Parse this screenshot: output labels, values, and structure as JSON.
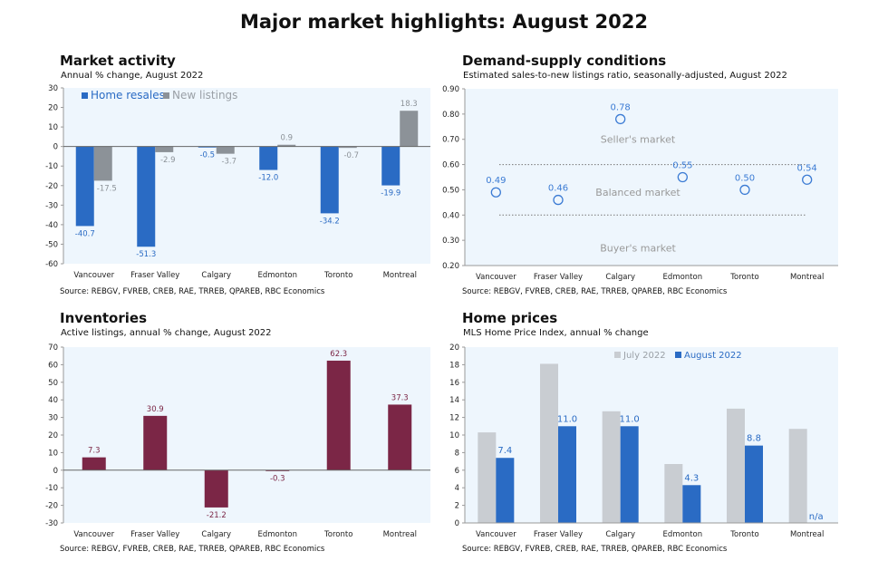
{
  "title": "Major market highlights: August 2022",
  "chart_data": [
    {
      "type": "bar",
      "title": "Market activity",
      "subtitle": "Annual % change, August 2022",
      "source": "Source: REBGV, FVREB, CREB, RAE, TRREB, QPAREB, RBC Economics",
      "categories": [
        "Vancouver",
        "Fraser Valley",
        "Calgary",
        "Edmonton",
        "Toronto",
        "Montreal"
      ],
      "series": [
        {
          "name": "Home resales",
          "color": "#2a6bc4",
          "values": [
            -40.7,
            -51.3,
            -0.5,
            -12.0,
            -34.2,
            -19.9
          ],
          "labels": [
            "-40.7",
            "-51.3",
            "-0.5",
            "-12.0",
            "-34.2",
            "-19.9"
          ]
        },
        {
          "name": "New listings",
          "color": "#8c9298",
          "values": [
            -17.5,
            -2.9,
            -3.7,
            0.9,
            -0.7,
            18.3
          ],
          "labels": [
            "-17.5",
            "-2.9",
            "-3.7",
            "0.9",
            "-0.7",
            "18.3"
          ]
        }
      ],
      "ylim": [
        -60,
        30
      ],
      "yticks": [
        -60,
        -50,
        -40,
        -30,
        -20,
        -10,
        0,
        10,
        20,
        30
      ],
      "legend": "top-left"
    },
    {
      "type": "scatter",
      "title": "Demand-supply conditions",
      "subtitle": "Estimated sales-to-new listings ratio, seasonally-adjusted, August 2022",
      "source": "Source: REBGV, FVREB, CREB, RAE, TRREB, QPAREB, RBC Economics",
      "categories": [
        "Vancouver",
        "Fraser Valley",
        "Calgary",
        "Edmonton",
        "Toronto",
        "Montreal"
      ],
      "values": [
        0.49,
        0.46,
        0.78,
        0.55,
        0.5,
        0.54
      ],
      "labels": [
        "0.49",
        "0.46",
        "0.78",
        "0.55",
        "0.50",
        "0.54"
      ],
      "color": "#3b7bd4",
      "ylim": [
        0.2,
        0.9
      ],
      "yticks": [
        "0.20",
        "0.30",
        "0.40",
        "0.50",
        "0.60",
        "0.70",
        "0.80",
        "0.90"
      ],
      "thresholds": [
        0.4,
        0.6
      ],
      "zones": [
        {
          "label": "Seller's market",
          "y": 0.7
        },
        {
          "label": "Balanced market",
          "y": 0.49
        },
        {
          "label": "Buyer's market",
          "y": 0.27
        }
      ]
    },
    {
      "type": "bar",
      "title": "Inventories",
      "subtitle": "Active listings, annual % change, August 2022",
      "source": "Source: REBGV, FVREB, CREB, RAE, TRREB, QPAREB, RBC Economics",
      "categories": [
        "Vancouver",
        "Fraser Valley",
        "Calgary",
        "Edmonton",
        "Toronto",
        "Montreal"
      ],
      "series": [
        {
          "color": "#7b2646",
          "values": [
            7.3,
            30.9,
            -21.2,
            -0.3,
            62.3,
            37.3
          ],
          "labels": [
            "7.3",
            "30.9",
            "-21.2",
            "-0.3",
            "62.3",
            "37.3"
          ]
        }
      ],
      "ylim": [
        -30,
        70
      ],
      "yticks": [
        -30,
        -20,
        -10,
        0,
        10,
        20,
        30,
        40,
        50,
        60,
        70
      ]
    },
    {
      "type": "bar",
      "title": "Home prices",
      "subtitle": "MLS Home Price Index, annual % change",
      "source": "Source: REBGV, FVREB, CREB, RAE, TRREB, QPAREB, RBC Economics",
      "categories": [
        "Vancouver",
        "Fraser Valley",
        "Calgary",
        "Edmonton",
        "Toronto",
        "Montreal"
      ],
      "series": [
        {
          "name": "July 2022",
          "color": "#c9cdd2",
          "values": [
            10.3,
            18.1,
            12.7,
            6.7,
            13.0,
            10.7
          ],
          "labels": [
            "",
            "",
            "",
            "",
            "",
            ""
          ]
        },
        {
          "name": "August 2022",
          "color": "#2a6bc4",
          "values": [
            7.4,
            11.0,
            11.0,
            4.3,
            8.8,
            null
          ],
          "labels": [
            "7.4",
            "11.0",
            "11.0",
            "4.3",
            "8.8",
            "n/a"
          ]
        }
      ],
      "ylim": [
        0,
        20
      ],
      "yticks": [
        0,
        2,
        4,
        6,
        8,
        10,
        12,
        14,
        16,
        18,
        20
      ],
      "legend": "top-center"
    }
  ]
}
